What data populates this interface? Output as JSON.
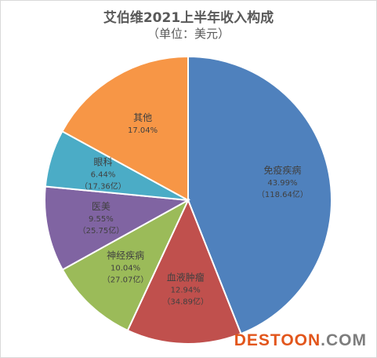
{
  "chart_data": {
    "type": "pie",
    "title": "艾伯维2021上半年收入构成",
    "subtitle": "（单位：美元）",
    "slices": [
      {
        "name": "免疫疾病",
        "percent": "43.99%",
        "amount": "（118.64亿）",
        "value": 43.99,
        "color": "#4f81bd"
      },
      {
        "name": "血液肿瘤",
        "percent": "12.94%",
        "amount": "（34.89亿）",
        "value": 12.94,
        "color": "#c0504d"
      },
      {
        "name": "神经疾病",
        "percent": "10.04%",
        "amount": "（27.07亿）",
        "value": 10.04,
        "color": "#9bbb59"
      },
      {
        "name": "医美",
        "percent": "9.55%",
        "amount": "（25.75亿）",
        "value": 9.55,
        "color": "#8064a2"
      },
      {
        "name": "眼科",
        "percent": "6.44%",
        "amount": "（17.36亿）",
        "value": 6.44,
        "color": "#4bacc6"
      },
      {
        "name": "其他",
        "percent": "17.04%",
        "amount": "",
        "value": 17.04,
        "color": "#f79646"
      }
    ]
  },
  "watermark": {
    "main": "DESTOON",
    "suffix": ".COM"
  }
}
